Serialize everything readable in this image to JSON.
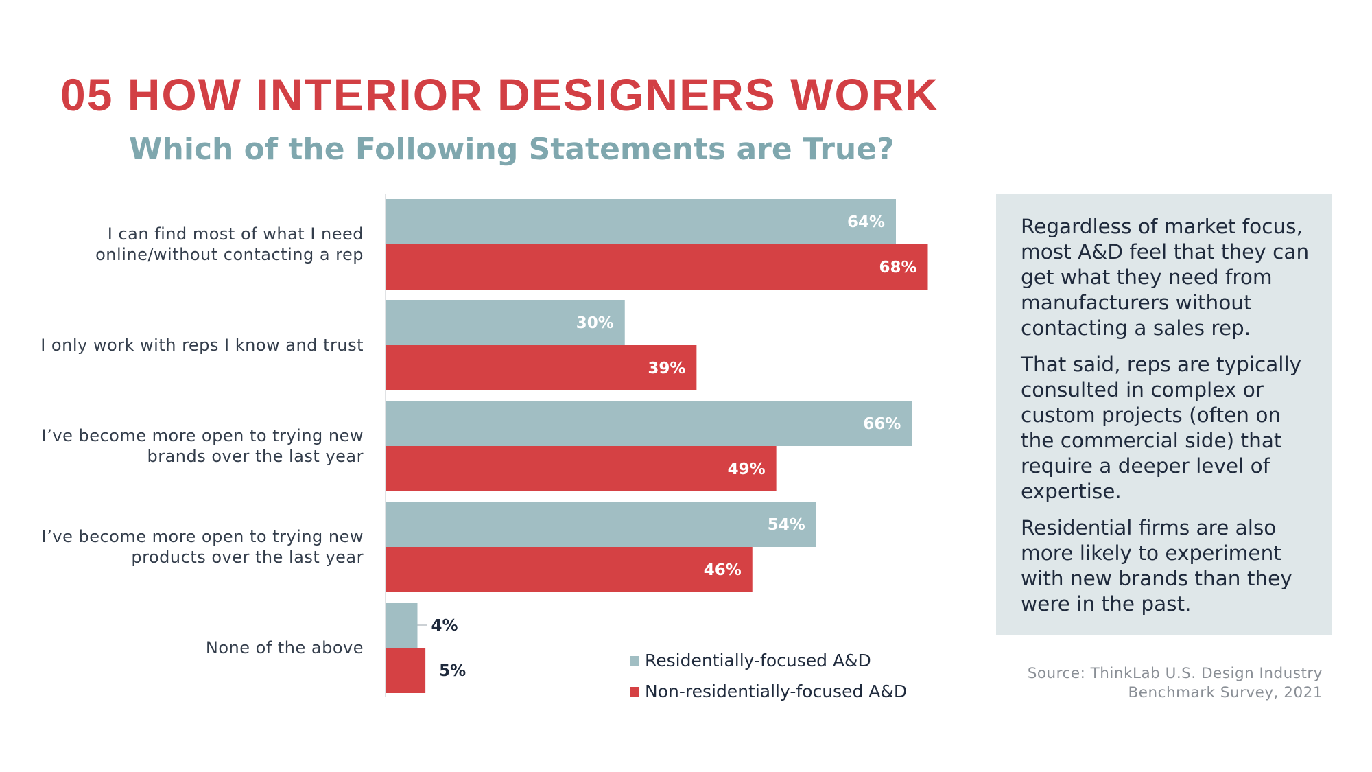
{
  "header": {
    "title": "05 HOW INTERIOR DESIGNERS WORK",
    "subtitle": "Which of the Following Statements are True?"
  },
  "chart_data": {
    "type": "bar",
    "orientation": "horizontal",
    "categories": [
      [
        "I can find most of what I need",
        "online/without contacting a rep"
      ],
      [
        "I only work with reps I know and trust"
      ],
      [
        "I’ve become more open to trying new",
        "brands over the last year"
      ],
      [
        "I’ve become more open to trying new",
        "products over the last year"
      ],
      [
        "None of the above"
      ]
    ],
    "series": [
      {
        "name": "Residentially-focused A&D",
        "color": "#a1bec3",
        "values": [
          64,
          30,
          66,
          54,
          4
        ],
        "labels": [
          "64%",
          "30%",
          "66%",
          "54%",
          "4%"
        ]
      },
      {
        "name": "Non-residentially-focused A&D",
        "color": "#d54144",
        "values": [
          68,
          39,
          49,
          46,
          5
        ],
        "labels": [
          "68%",
          "39%",
          "49%",
          "46%",
          "5%"
        ]
      }
    ],
    "xlim": [
      0,
      100
    ],
    "grid": false,
    "legend_position": "bottom-right",
    "unit": "%"
  },
  "callout": {
    "paragraphs": [
      "Regardless of market focus, most A&D feel that they can get what they need from manufacturers without contacting a sales rep.",
      "That said, reps are typically consulted in complex or custom projects (often on the commercial side) that require a deeper level of expertise.",
      "Residential firms are also more likely to experiment with new brands than they were in the past."
    ]
  },
  "source": {
    "line1": "Source: ThinkLab U.S. Design Industry",
    "line2": "Benchmark Survey, 2021"
  }
}
